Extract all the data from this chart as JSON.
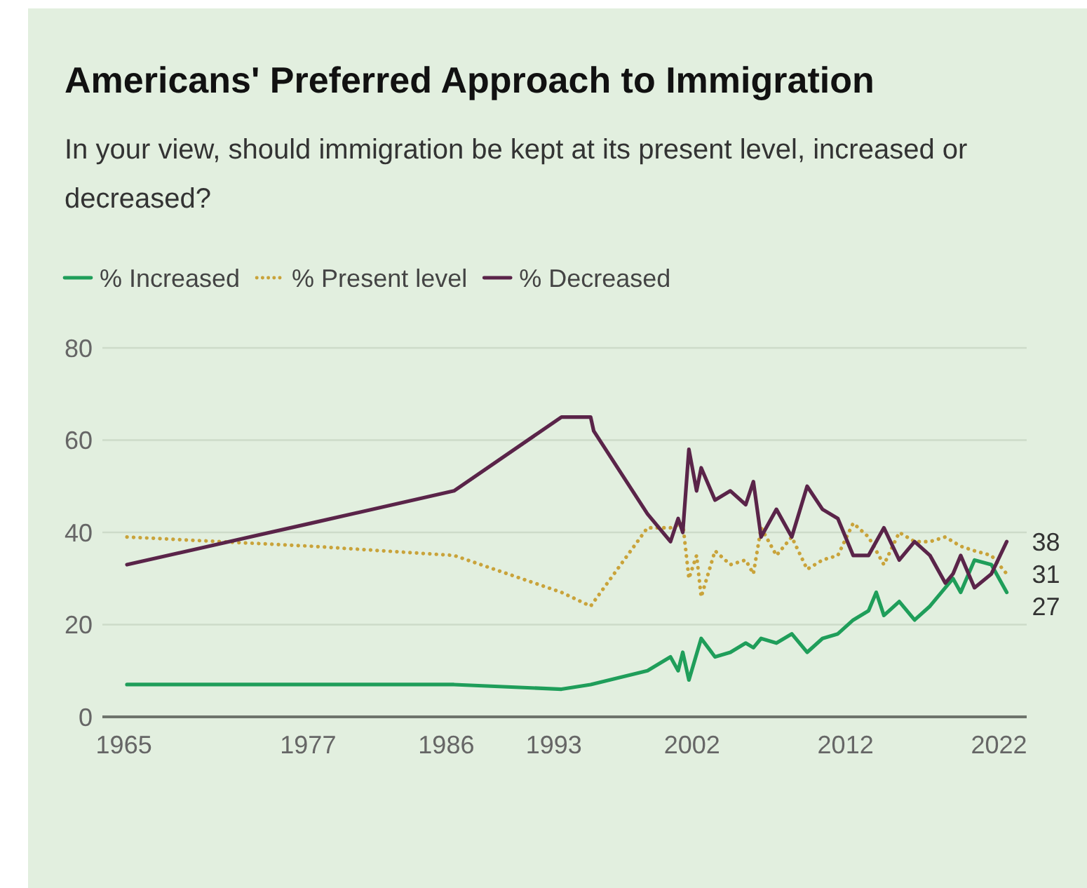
{
  "chart_data": {
    "type": "line",
    "title": "Americans' Preferred Approach to Immigration",
    "subtitle": "In your view, should immigration be kept at its present level, increased or decreased?",
    "xlim": [
      1963.6,
      2023.8
    ],
    "xticks": [
      1965,
      1977,
      1986,
      1993,
      2002,
      2012,
      2022
    ],
    "ylim": [
      0,
      80
    ],
    "yticks": [
      0,
      20,
      40,
      60,
      80
    ],
    "grid": "y",
    "legend": "top left",
    "series": [
      {
        "name": "% Increased",
        "color": "#1f9e5a",
        "line_style": "solid",
        "x": [
          1965.2,
          1977.2,
          1986.5,
          1993.5,
          1995.4,
          1999.1,
          2000.6,
          2001.1,
          2001.4,
          2001.8,
          2002.6,
          2003.5,
          2004.5,
          2005.5,
          2006.0,
          2006.5,
          2007.5,
          2008.5,
          2009.5,
          2010.5,
          2011.5,
          2012.5,
          2013.5,
          2014.0,
          2014.5,
          2015.5,
          2016.5,
          2017.5,
          2018.5,
          2019.0,
          2019.5,
          2020.4,
          2021.5,
          2022.5
        ],
        "values": [
          7,
          7,
          7,
          6,
          7,
          10,
          13,
          10,
          14,
          8,
          17,
          13,
          14,
          16,
          15,
          17,
          16,
          18,
          14,
          17,
          18,
          21,
          23,
          27,
          22,
          25,
          21,
          24,
          28,
          30,
          27,
          34,
          33,
          27
        ],
        "value_labels": [
          null,
          null,
          null,
          null,
          null,
          null,
          null,
          null,
          null,
          null,
          null,
          null,
          null,
          null,
          null,
          null,
          null,
          null,
          null,
          null,
          null,
          null,
          null,
          null,
          null,
          null,
          null,
          null,
          null,
          null,
          null,
          null,
          null,
          "27"
        ]
      },
      {
        "name": "% Present level",
        "color": "#c9a33a",
        "line_style": "dotted",
        "x": [
          1965.2,
          1977.2,
          1986.5,
          1993.5,
          1995.4,
          1999.1,
          2000.6,
          2001.4,
          2001.8,
          2002.3,
          2002.6,
          2003.5,
          2004.5,
          2005.5,
          2006.0,
          2006.5,
          2007.5,
          2008.5,
          2009.5,
          2010.5,
          2011.5,
          2012.5,
          2013.5,
          2014.5,
          2015.5,
          2016.5,
          2017.5,
          2018.5,
          2019.5,
          2020.4,
          2021.5,
          2022.5
        ],
        "values": [
          39,
          37,
          35,
          27,
          24,
          41,
          41,
          42,
          30,
          35,
          26,
          36,
          33,
          34,
          31,
          41,
          35,
          39,
          32,
          34,
          35,
          42,
          39,
          33,
          40,
          38,
          38,
          39,
          37,
          36,
          35,
          31
        ],
        "value_labels": [
          null,
          null,
          null,
          null,
          null,
          null,
          null,
          null,
          null,
          null,
          null,
          null,
          null,
          null,
          null,
          null,
          null,
          null,
          null,
          null,
          null,
          null,
          null,
          null,
          null,
          null,
          null,
          null,
          null,
          null,
          null,
          "31"
        ]
      },
      {
        "name": "% Decreased",
        "color": "#5a2449",
        "line_style": "solid",
        "x": [
          1965.2,
          1977.2,
          1986.5,
          1993.5,
          1995.4,
          1995.6,
          1999.1,
          2000.6,
          2001.1,
          2001.4,
          2001.8,
          2002.3,
          2002.6,
          2003.5,
          2004.5,
          2005.5,
          2006.0,
          2006.5,
          2007.5,
          2008.5,
          2009.5,
          2010.5,
          2011.5,
          2012.5,
          2013.5,
          2014.5,
          2015.5,
          2016.5,
          2017.5,
          2018.5,
          2019.0,
          2019.5,
          2020.4,
          2021.5,
          2022.5
        ],
        "values": [
          33,
          42,
          49,
          65,
          65,
          62,
          44,
          38,
          43,
          40,
          58,
          49,
          54,
          47,
          49,
          46,
          51,
          39,
          45,
          39,
          50,
          45,
          43,
          35,
          35,
          41,
          34,
          38,
          35,
          29,
          31,
          35,
          28,
          31,
          38
        ],
        "value_labels": [
          null,
          null,
          null,
          null,
          null,
          null,
          null,
          null,
          null,
          null,
          null,
          null,
          null,
          null,
          null,
          null,
          null,
          null,
          null,
          null,
          null,
          null,
          null,
          null,
          null,
          null,
          null,
          null,
          null,
          null,
          null,
          null,
          null,
          null,
          "38"
        ]
      }
    ]
  }
}
